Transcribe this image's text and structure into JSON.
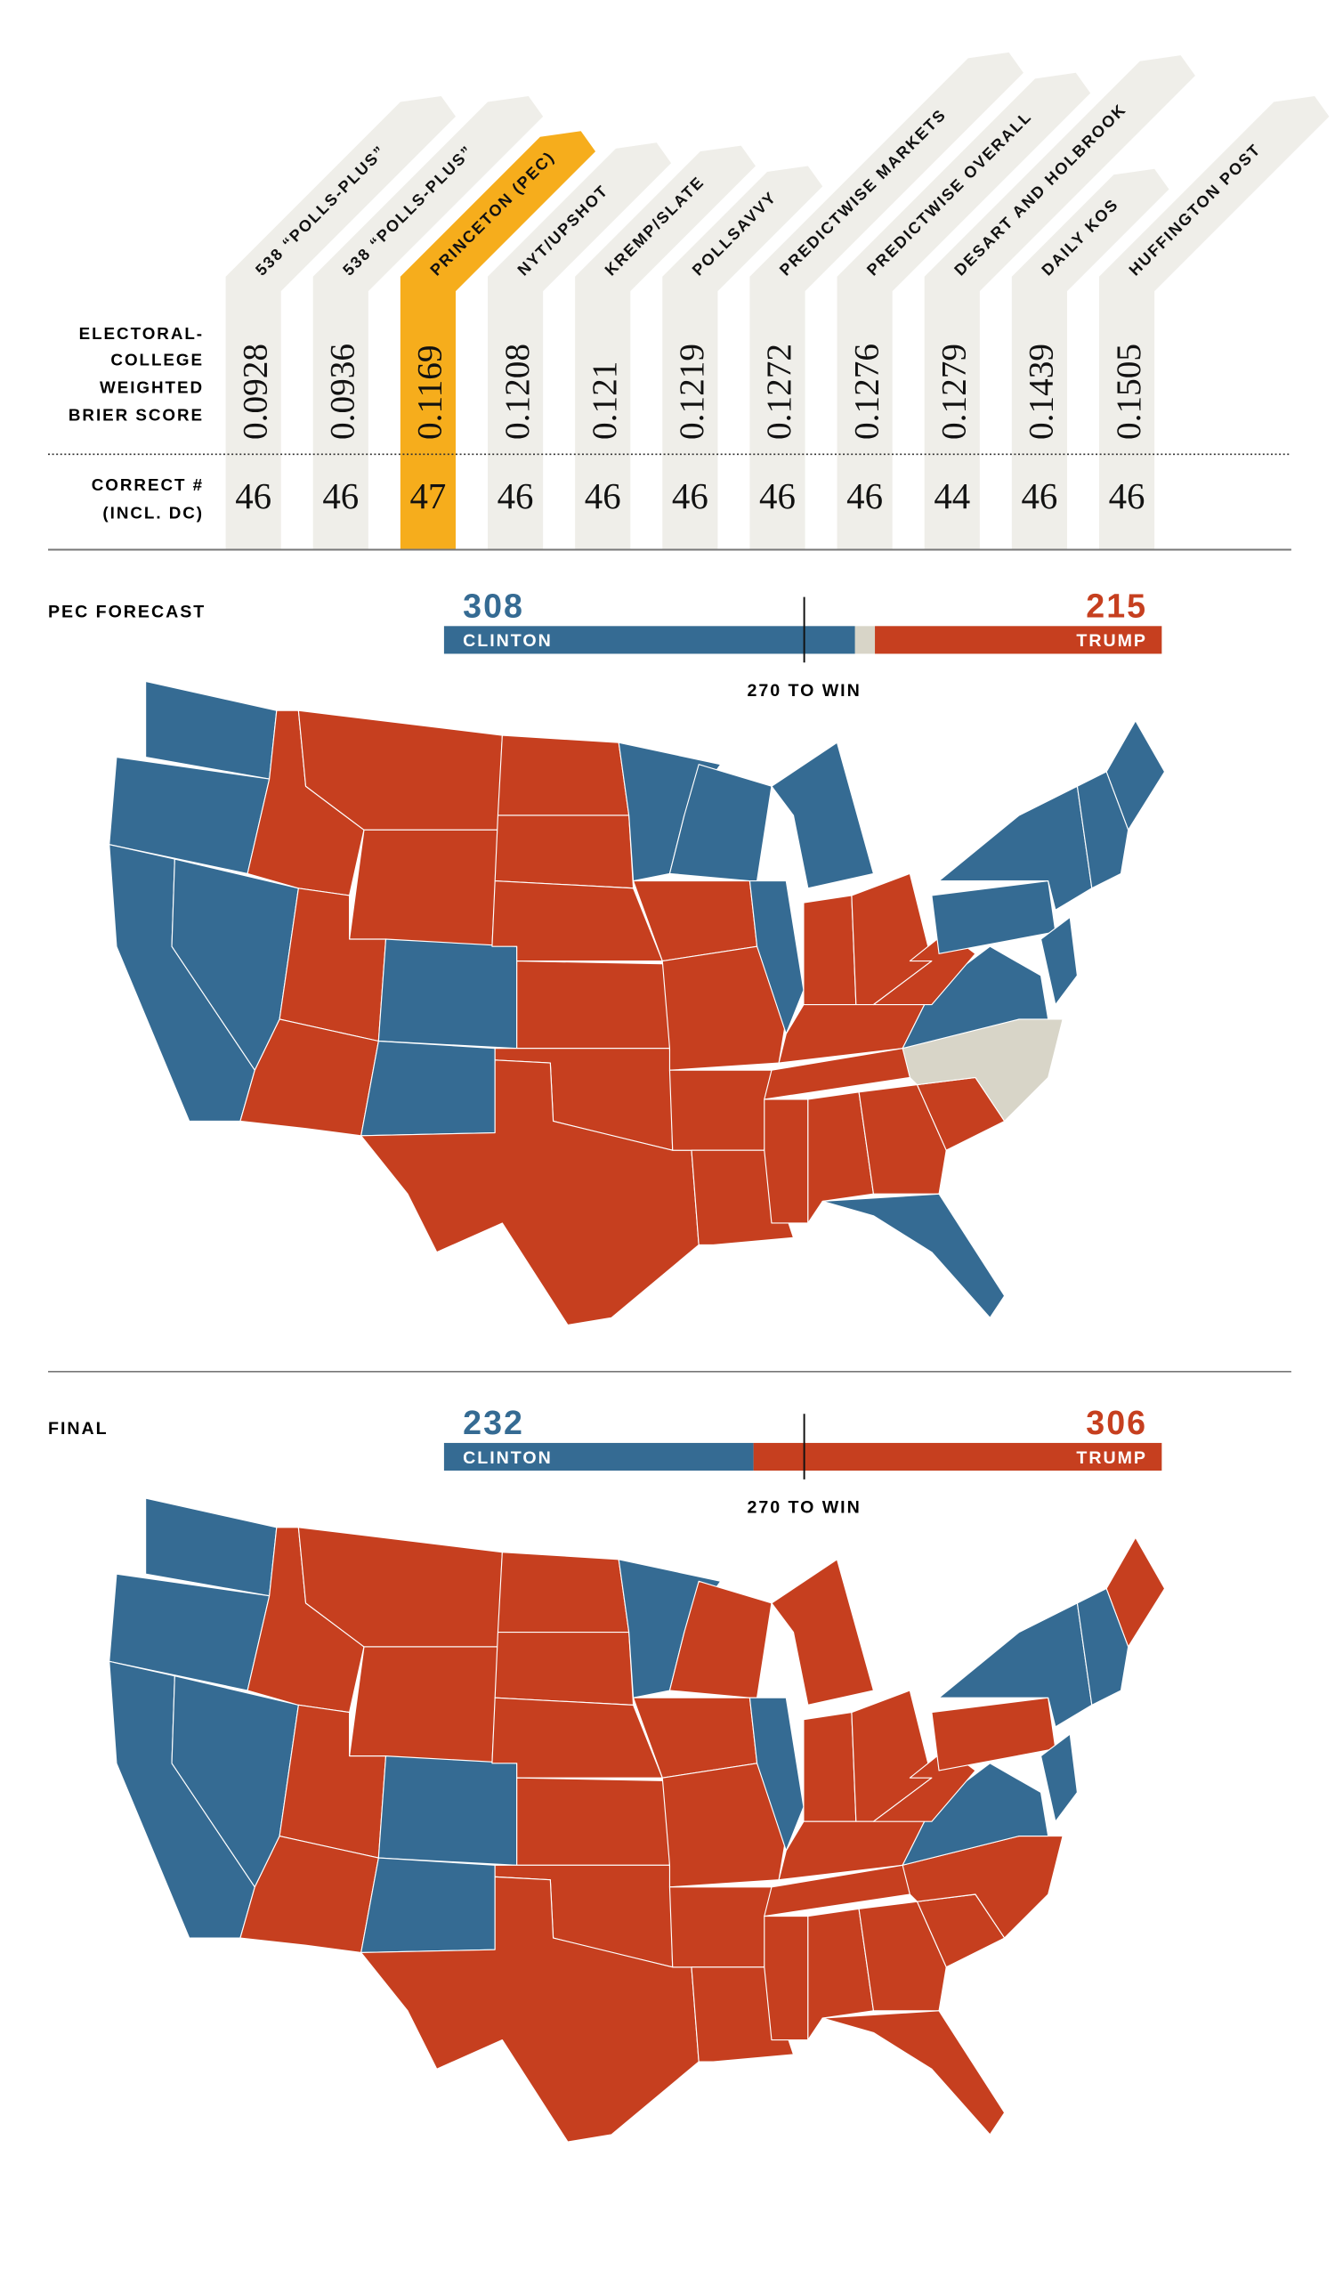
{
  "colors": {
    "clinton": "#356b93",
    "trump": "#c63f1f",
    "tossup": "#d8d5c8",
    "column": "#efeee9",
    "highlight": "#f6ad1c"
  },
  "table": {
    "score_label": [
      "ELECTORAL-",
      "COLLEGE",
      "WEIGHTED",
      "BRIER SCORE"
    ],
    "correct_label": [
      "CORRECT #",
      "(INCL. DC)"
    ],
    "highlight_index": 2,
    "columns": [
      {
        "name": "538 “POLLS-PLUS”",
        "score": "0.0928",
        "correct": "46"
      },
      {
        "name": "538 “POLLS-PLUS”",
        "score": "0.0936",
        "correct": "46"
      },
      {
        "name": "PRINCETON (PEC)",
        "score": "0.1169",
        "correct": "47"
      },
      {
        "name": "NYT/UPSHOT",
        "score": "0.1208",
        "correct": "46"
      },
      {
        "name": "KREMP/SLATE",
        "score": "0.121",
        "correct": "46"
      },
      {
        "name": "POLLSAVVY",
        "score": "0.1219",
        "correct": "46"
      },
      {
        "name": "PREDICTWISE MARKETS",
        "score": "0.1272",
        "correct": "46"
      },
      {
        "name": "PREDICTWISE OVERALL",
        "score": "0.1276",
        "correct": "46"
      },
      {
        "name": "DESART AND HOLBROOK",
        "score": "0.1279",
        "correct": "44"
      },
      {
        "name": "DAILY KOS",
        "score": "0.1439",
        "correct": "46"
      },
      {
        "name": "HUFFINGTON POST",
        "score": "0.1505",
        "correct": "46"
      }
    ]
  },
  "chart_data": [
    {
      "type": "bar",
      "title": "PEC FORECAST",
      "categories": [
        "CLINTON",
        "TRUMP"
      ],
      "values": [
        308,
        215
      ],
      "total": 538,
      "threshold": 270,
      "threshold_label": "270 TO WIN"
    },
    {
      "type": "bar",
      "title": "FINAL",
      "categories": [
        "CLINTON",
        "TRUMP"
      ],
      "values": [
        232,
        306
      ],
      "total": 538,
      "threshold": 270,
      "threshold_label": "270 TO WIN"
    }
  ],
  "maps": {
    "forecast": {
      "WA": "D",
      "OR": "D",
      "CA": "D",
      "NV": "D",
      "ID": "R",
      "MT": "R",
      "WY": "R",
      "UT": "R",
      "CO": "D",
      "AZ": "R",
      "NM": "D",
      "ND": "R",
      "SD": "R",
      "NE": "R",
      "KS": "R",
      "OK": "R",
      "TX": "R",
      "MN": "D",
      "IA": "R",
      "MO": "R",
      "AR": "R",
      "LA": "R",
      "WI": "D",
      "IL": "D",
      "MI": "D",
      "IN": "R",
      "OH": "R",
      "KY": "R",
      "TN": "R",
      "MS": "R",
      "AL": "R",
      "GA": "R",
      "FL": "D",
      "SC": "R",
      "NC": "T",
      "VA": "D",
      "WV": "R",
      "PA": "D",
      "NY": "D",
      "ME": "D",
      "NE2": "D",
      "MD": "D"
    },
    "final": {
      "WA": "D",
      "OR": "D",
      "CA": "D",
      "NV": "D",
      "ID": "R",
      "MT": "R",
      "WY": "R",
      "UT": "R",
      "CO": "D",
      "AZ": "R",
      "NM": "D",
      "ND": "R",
      "SD": "R",
      "NE": "R",
      "KS": "R",
      "OK": "R",
      "TX": "R",
      "MN": "D",
      "IA": "R",
      "MO": "R",
      "AR": "R",
      "LA": "R",
      "WI": "R",
      "IL": "D",
      "MI": "R",
      "IN": "R",
      "OH": "R",
      "KY": "R",
      "TN": "R",
      "MS": "R",
      "AL": "R",
      "GA": "R",
      "FL": "R",
      "SC": "R",
      "NC": "R",
      "VA": "D",
      "WV": "R",
      "PA": "R",
      "NY": "D",
      "ME": "R",
      "NE2": "D",
      "MD": "D"
    }
  }
}
